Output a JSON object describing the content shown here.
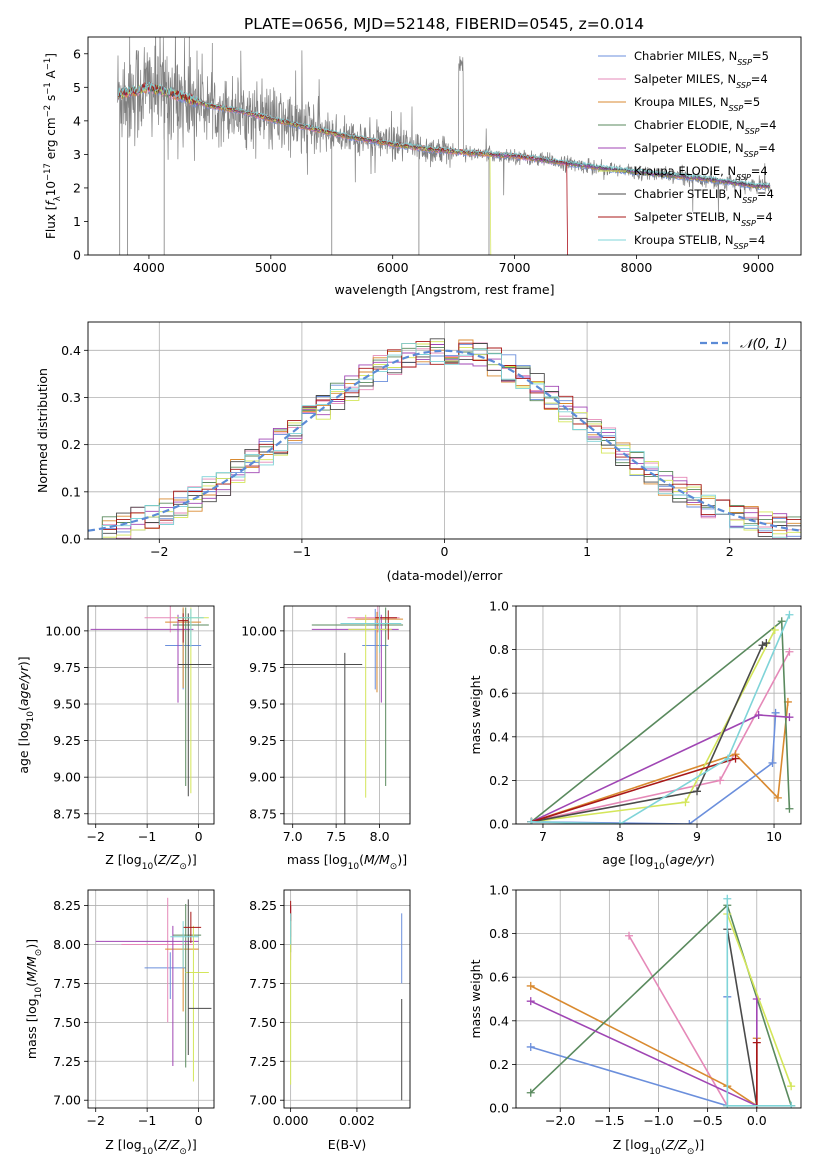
{
  "figure": {
    "title": "PLATE=0656, MJD=52148, FIBERID=0545, z=0.014"
  },
  "colors": {
    "data_gray": "#808080",
    "grid": "#b0b0b0",
    "normal": "#5b8bd6",
    "models": [
      "#6b8fdc",
      "#e589b8",
      "#d98a30",
      "#5a8a5e",
      "#a046b4",
      "#d4e65a",
      "#4a4a4a",
      "#a81818",
      "#7fd4d8"
    ]
  },
  "chart_data": [
    {
      "id": "spectrum",
      "type": "line",
      "xlabel": "wavelength [Angstrom, rest frame]",
      "ylabel_text": "Flux [",
      "xlim": [
        3500,
        9350
      ],
      "ylim": [
        0,
        6.5
      ],
      "xticks": [
        4000,
        5000,
        6000,
        7000,
        8000,
        9000
      ],
      "yticks": [
        0,
        1,
        2,
        3,
        4,
        5,
        6
      ],
      "legend_position": "upper right",
      "legend": [
        {
          "label": "Chabrier MILES, N",
          "n": "=5"
        },
        {
          "label": "Salpeter MILES, N",
          "n": "=4"
        },
        {
          "label": "Kroupa MILES, N",
          "n": "=5"
        },
        {
          "label": "Chabrier ELODIE, N",
          "n": "=4"
        },
        {
          "label": "Salpeter ELODIE, N",
          "n": "=4"
        },
        {
          "label": "Kroupa ELODIE, N",
          "n": "=4"
        },
        {
          "label": "Chabrier STELIB, N",
          "n": "=4"
        },
        {
          "label": "Salpeter STELIB, N",
          "n": "=4"
        },
        {
          "label": "Kroupa STELIB, N",
          "n": "=4"
        }
      ],
      "continuum": {
        "x": [
          3750,
          3900,
          4000,
          4200,
          4500,
          4800,
          5000,
          5300,
          5600,
          6000,
          6300,
          6600,
          7000,
          7400,
          7800,
          8200,
          8600,
          9000
        ],
        "y": [
          4.8,
          4.9,
          5.0,
          4.8,
          4.45,
          4.25,
          4.05,
          3.8,
          3.55,
          3.3,
          3.15,
          3.05,
          2.95,
          2.75,
          2.55,
          2.4,
          2.25,
          2.05
        ]
      },
      "data_range": [
        3740,
        9100
      ]
    },
    {
      "id": "residuals",
      "type": "histogram",
      "xlabel": "(data-model)/error",
      "ylabel": "Normed distribution",
      "xlim": [
        -2.5,
        2.5
      ],
      "ylim": [
        0,
        0.46
      ],
      "xticks": [
        -2,
        -1,
        0,
        1,
        2
      ],
      "yticks": [
        0,
        0.1,
        0.2,
        0.3,
        0.4
      ],
      "legend": "𝒩(0, 1)",
      "bin_width": 0.1
    },
    {
      "id": "age_vs_Z",
      "type": "errorbar",
      "xlabel": "Z [log",
      "ylabel": "age  [log",
      "xlim": [
        -2.15,
        0.3
      ],
      "ylim": [
        8.68,
        10.17
      ],
      "xticks": [
        -2,
        -1,
        0
      ],
      "yticks": [
        8.75,
        9.0,
        9.25,
        9.5,
        9.75,
        10.0
      ],
      "points": [
        {
          "c": 0,
          "x": -0.3,
          "y": 9.9,
          "xe": [
            0.35,
            0.35
          ],
          "ye": [
            0.3,
            0.25
          ]
        },
        {
          "c": 1,
          "x": -0.55,
          "y": 10.09,
          "xe": [
            0.5,
            0.3
          ],
          "ye": [
            0.1,
            0.08
          ]
        },
        {
          "c": 2,
          "x": -0.3,
          "y": 10.06,
          "xe": [
            0.35,
            0.35
          ],
          "ye": [
            0.45,
            0.1
          ]
        },
        {
          "c": 3,
          "x": -0.25,
          "y": 10.04,
          "xe": [
            0.25,
            0.45
          ],
          "ye": [
            1.1,
            0.12
          ]
        },
        {
          "c": 4,
          "x": -0.4,
          "y": 10.01,
          "xe": [
            1.7,
            0.3
          ],
          "ye": [
            0.5,
            0.1
          ]
        },
        {
          "c": 5,
          "x": -0.15,
          "y": 10.09,
          "xe": [
            0.3,
            0.35
          ],
          "ye": [
            1.2,
            0.07
          ]
        },
        {
          "c": 6,
          "x": -0.2,
          "y": 9.77,
          "xe": [
            0.2,
            0.45
          ],
          "ye": [
            0.9,
            0.35
          ]
        },
        {
          "c": 7,
          "x": -0.3,
          "y": 10.07,
          "xe": [
            0.1,
            0.1
          ],
          "ye": [
            0.15,
            0.05
          ]
        },
        {
          "c": 8,
          "x": -0.15,
          "y": 10.09,
          "xe": [
            0.25,
            0.25
          ],
          "ye": [
            0.2,
            0.06
          ]
        }
      ]
    },
    {
      "id": "age_vs_mass",
      "type": "errorbar",
      "xlabel": "mass [log",
      "ylabel": "",
      "xlim": [
        6.9,
        8.35
      ],
      "ylim": [
        8.68,
        10.17
      ],
      "xticks": [
        7.0,
        7.5,
        8.0
      ],
      "yticks": [
        8.75,
        9.0,
        9.25,
        9.5,
        9.75,
        10.0
      ],
      "points": [
        {
          "c": 0,
          "x": 7.95,
          "y": 9.9,
          "xe": [
            0.15,
            0.15
          ],
          "ye": [
            0.3,
            0.25
          ]
        },
        {
          "c": 1,
          "x": 7.98,
          "y": 10.09,
          "xe": [
            0.35,
            0.25
          ],
          "ye": [
            0.1,
            0.08
          ]
        },
        {
          "c": 2,
          "x": 7.97,
          "y": 10.08,
          "xe": [
            0.25,
            0.3
          ],
          "ye": [
            0.5,
            0.05
          ]
        },
        {
          "c": 3,
          "x": 8.07,
          "y": 10.04,
          "xe": [
            0.85,
            0.2
          ],
          "ye": [
            1.1,
            0.12
          ]
        },
        {
          "c": 4,
          "x": 8.02,
          "y": 10.01,
          "xe": [
            0.8,
            0.2
          ],
          "ye": [
            0.5,
            0.1
          ]
        },
        {
          "c": 5,
          "x": 7.84,
          "y": 10.01,
          "xe": [
            0.2,
            0.3
          ],
          "ye": [
            1.15,
            0.1
          ]
        },
        {
          "c": 6,
          "x": 7.6,
          "y": 9.77,
          "xe": [
            0.75,
            0.2
          ],
          "ye": [
            1.17,
            0.08
          ]
        },
        {
          "c": 7,
          "x": 8.1,
          "y": 10.09,
          "xe": [
            0.15,
            0.1
          ],
          "ye": [
            0.15,
            0.05
          ]
        },
        {
          "c": 8,
          "x": 8.0,
          "y": 10.05,
          "xe": [
            0.45,
            0.25
          ],
          "ye": [
            0.2,
            0.08
          ]
        }
      ]
    },
    {
      "id": "weight_vs_age",
      "type": "line",
      "xlabel": "age  [log",
      "ylabel": "mass weight",
      "xlim": [
        6.65,
        10.35
      ],
      "ylim": [
        0,
        1.0
      ],
      "xticks": [
        7,
        8,
        9,
        10
      ],
      "yticks": [
        0.0,
        0.2,
        0.4,
        0.6,
        0.8,
        1.0
      ],
      "series": [
        {
          "c": 0,
          "x": [
            6.85,
            8.9,
            9.98,
            10.02
          ],
          "y": [
            0.01,
            0.0,
            0.28,
            0.51
          ]
        },
        {
          "c": 1,
          "x": [
            6.85,
            9.3,
            10.2
          ],
          "y": [
            0.01,
            0.2,
            0.79
          ]
        },
        {
          "c": 2,
          "x": [
            6.85,
            9.5,
            10.05,
            10.18
          ],
          "y": [
            0.01,
            0.32,
            0.12,
            0.56
          ]
        },
        {
          "c": 3,
          "x": [
            6.85,
            10.1,
            10.2
          ],
          "y": [
            0.01,
            0.93,
            0.07
          ]
        },
        {
          "c": 4,
          "x": [
            6.85,
            9.8,
            10.2
          ],
          "y": [
            0.01,
            0.5,
            0.49
          ]
        },
        {
          "c": 5,
          "x": [
            6.85,
            8.85,
            10.01
          ],
          "y": [
            0.01,
            0.1,
            0.89
          ]
        },
        {
          "c": 6,
          "x": [
            6.85,
            9.0,
            9.85,
            9.9
          ],
          "y": [
            0.01,
            0.15,
            0.82,
            0.83
          ]
        },
        {
          "c": 7,
          "x": [
            6.85,
            9.5
          ],
          "y": [
            0.01,
            0.3
          ]
        },
        {
          "c": 8,
          "x": [
            6.85,
            8.0,
            9.4,
            10.2
          ],
          "y": [
            0.01,
            0.0,
            0.3,
            0.96
          ]
        }
      ]
    },
    {
      "id": "mass_vs_Z",
      "type": "errorbar",
      "xlabel": "Z [log",
      "ylabel": "mass [log",
      "xlim": [
        -2.15,
        0.3
      ],
      "ylim": [
        6.95,
        8.35
      ],
      "xticks": [
        -2,
        -1,
        0
      ],
      "yticks": [
        7.0,
        7.25,
        7.5,
        7.75,
        8.0,
        8.25
      ],
      "points": [
        {
          "c": 0,
          "x": -0.55,
          "y": 7.85,
          "xe": [
            0.5,
            0.3
          ],
          "ye": [
            0.2,
            0.1
          ]
        },
        {
          "c": 1,
          "x": -0.6,
          "y": 8.0,
          "xe": [
            0.9,
            0.5
          ],
          "ye": [
            0.5,
            0.3
          ]
        },
        {
          "c": 2,
          "x": -0.3,
          "y": 7.97,
          "xe": [
            0.35,
            0.3
          ],
          "ye": [
            0.4,
            0.1
          ]
        },
        {
          "c": 3,
          "x": -0.25,
          "y": 8.06,
          "xe": [
            0.25,
            0.3
          ],
          "ye": [
            0.85,
            0.2
          ]
        },
        {
          "c": 4,
          "x": -0.5,
          "y": 8.02,
          "xe": [
            1.5,
            0.5
          ],
          "ye": [
            0.8,
            0.1
          ]
        },
        {
          "c": 5,
          "x": -0.1,
          "y": 7.82,
          "xe": [
            0.15,
            0.3
          ],
          "ye": [
            0.7,
            0.3
          ]
        },
        {
          "c": 6,
          "x": -0.2,
          "y": 7.59,
          "xe": [
            0.0,
            0.45
          ],
          "ye": [
            0.3,
            0.7
          ]
        },
        {
          "c": 7,
          "x": -0.15,
          "y": 8.11,
          "xe": [
            0.15,
            0.2
          ],
          "ye": [
            0.1,
            0.1
          ]
        },
        {
          "c": 8,
          "x": -0.3,
          "y": 8.05,
          "xe": [
            0.25,
            0.3
          ],
          "ye": [
            0.2,
            0.1
          ]
        }
      ]
    },
    {
      "id": "mass_vs_EBV",
      "type": "errorbar",
      "xlabel": "E(B-V)",
      "ylabel": "",
      "xlim": [
        -0.0002,
        0.0036
      ],
      "ylim": [
        6.95,
        8.35
      ],
      "xticks": [
        0.0,
        0.002
      ],
      "yticks": [
        7.0,
        7.25,
        7.5,
        7.75,
        8.0,
        8.25
      ],
      "points": [
        {
          "c": 0,
          "x": 0.00335,
          "y": 8.0,
          "xe": [
            0,
            0
          ],
          "ye": [
            0.25,
            0.2
          ]
        },
        {
          "c": 1,
          "x": 0.0,
          "y": 8.05,
          "xe": [
            0,
            0
          ],
          "ye": [
            0.15,
            0.2
          ]
        },
        {
          "c": 2,
          "x": 0.0,
          "y": 8.1,
          "xe": [
            0,
            0
          ],
          "ye": [
            0.1,
            0.15
          ]
        },
        {
          "c": 3,
          "x": 0.0,
          "y": 8.05,
          "xe": [
            0,
            0
          ],
          "ye": [
            0.1,
            0.15
          ]
        },
        {
          "c": 4,
          "x": 0.0,
          "y": 8.15,
          "xe": [
            0,
            0
          ],
          "ye": [
            0.1,
            0.1
          ]
        },
        {
          "c": 5,
          "x": 0.0,
          "y": 7.9,
          "xe": [
            0,
            0
          ],
          "ye": [
            0.8,
            0.3
          ]
        },
        {
          "c": 6,
          "x": 0.00335,
          "y": 7.5,
          "xe": [
            0,
            0
          ],
          "ye": [
            0.5,
            0.15
          ]
        },
        {
          "c": 7,
          "x": 0.0,
          "y": 8.2,
          "xe": [
            0,
            0
          ],
          "ye": [
            0.05,
            0.08
          ]
        },
        {
          "c": 8,
          "x": 0.0,
          "y": 8.1,
          "xe": [
            0,
            0
          ],
          "ye": [
            0.1,
            0.1
          ]
        }
      ]
    },
    {
      "id": "weight_vs_Z",
      "type": "line",
      "xlabel": "Z [log",
      "ylabel": "mass weight",
      "xlim": [
        -2.45,
        0.45
      ],
      "ylim": [
        0,
        1.0
      ],
      "xticks": [
        -2.0,
        -1.5,
        -1.0,
        -0.5,
        0.0
      ],
      "yticks": [
        0.0,
        0.2,
        0.4,
        0.6,
        0.8,
        1.0
      ],
      "series": [
        {
          "c": 0,
          "x": [
            -2.3,
            -0.3,
            -0.3
          ],
          "y": [
            0.28,
            0.01,
            0.51
          ]
        },
        {
          "c": 1,
          "x": [
            -1.3,
            -0.3
          ],
          "y": [
            0.79,
            0.01
          ]
        },
        {
          "c": 2,
          "x": [
            -2.3,
            -0.3,
            0.0,
            0.0
          ],
          "y": [
            0.56,
            0.1,
            0.01,
            0.32
          ]
        },
        {
          "c": 3,
          "x": [
            -2.3,
            -0.3,
            0.35
          ],
          "y": [
            0.07,
            0.93,
            0.01
          ]
        },
        {
          "c": 4,
          "x": [
            -2.3,
            0.0,
            0.0
          ],
          "y": [
            0.49,
            0.01,
            0.5
          ]
        },
        {
          "c": 5,
          "x": [
            -0.3,
            0.35
          ],
          "y": [
            0.89,
            0.1
          ]
        },
        {
          "c": 6,
          "x": [
            -0.3,
            0.0
          ],
          "y": [
            0.82,
            0.01
          ]
        },
        {
          "c": 7,
          "x": [
            0.0,
            0.0
          ],
          "y": [
            0.01,
            0.3
          ]
        },
        {
          "c": 8,
          "x": [
            -0.3,
            -0.3,
            0.35
          ],
          "y": [
            0.96,
            0.01,
            0.01
          ]
        }
      ]
    }
  ]
}
